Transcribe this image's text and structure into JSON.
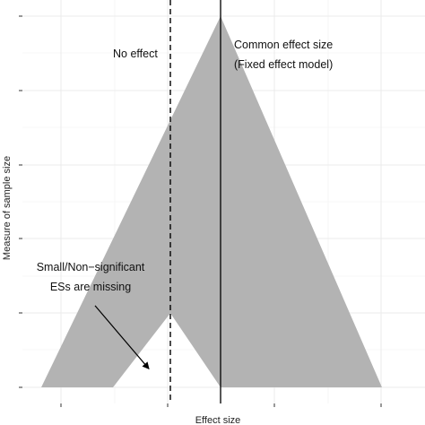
{
  "chart_data": {
    "type": "area",
    "title": "",
    "xlabel": "Effect size",
    "ylabel": "Measure of sample size",
    "x_ticks_labeled": false,
    "y_ticks_labeled": false,
    "grid": true,
    "xlim": [
      0,
      10
    ],
    "ylim": [
      0,
      10
    ],
    "funnel": {
      "apex": {
        "x": 5.0,
        "y": 10.0
      },
      "base_left": {
        "x": 0.0,
        "y": 0.0
      },
      "base_right": {
        "x": 9.5,
        "y": 0.0
      },
      "missing_region": {
        "top": {
          "x": 3.6,
          "y": 2.0
        },
        "left": {
          "x": 2.0,
          "y": 0.0
        },
        "right": {
          "x": 5.0,
          "y": 0.0
        }
      }
    },
    "reference_lines": [
      {
        "name": "no_effect",
        "x": 3.6,
        "style": "dashed"
      },
      {
        "name": "common_effect",
        "x": 5.0,
        "style": "solid"
      }
    ],
    "annotations": {
      "no_effect": "No effect",
      "common_effect_line1": "Common effect size",
      "common_effect_line2": "(Fixed effect model)",
      "missing_line1": "Small/Non−significant",
      "missing_line2": "ESs are missing"
    },
    "arrow": {
      "from": {
        "x": 1.5,
        "y": 2.2
      },
      "to": {
        "x": 3.0,
        "y": 0.5
      }
    },
    "colors": {
      "funnel_fill": "#b3b3b3",
      "grid": "#ebebeb",
      "line": "#000000"
    }
  }
}
